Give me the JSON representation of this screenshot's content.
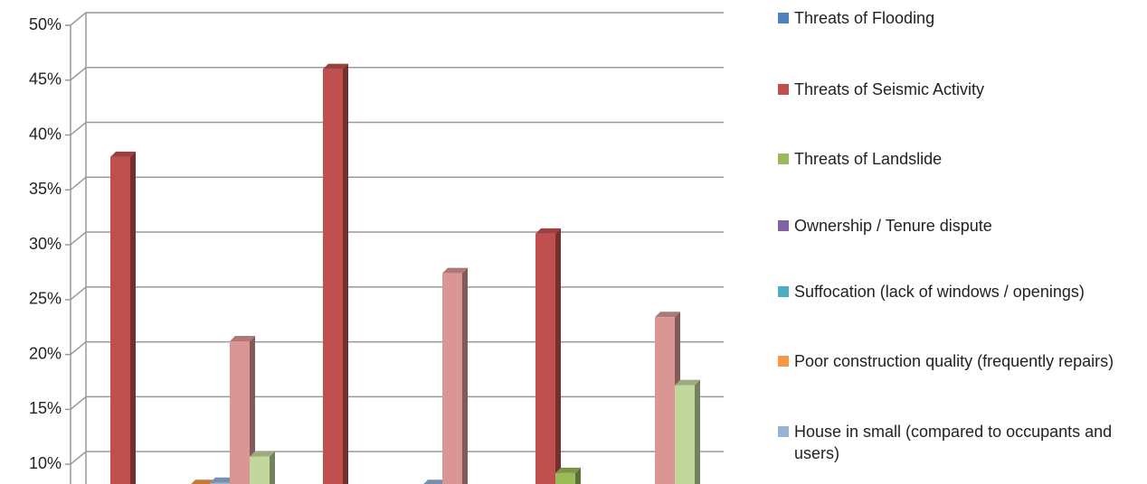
{
  "chart_data": {
    "type": "bar3d",
    "categories": [
      null,
      null,
      null
    ],
    "series": [
      {
        "name": "Threats of Flooding",
        "color": "#4f81bd",
        "values": [
          null,
          null,
          null
        ]
      },
      {
        "name": "Threats of Seismic Activity",
        "color": "#c0504d",
        "values": [
          38,
          46,
          31
        ]
      },
      {
        "name": "Threats of Landslide",
        "color": "#9bbb59",
        "values": [
          null,
          null,
          9.2
        ]
      },
      {
        "name": "Ownership / Tenure dispute",
        "color": "#8064a2",
        "values": [
          null,
          null,
          null
        ]
      },
      {
        "name": "Suffocation (lack of windows / openings)",
        "color": "#4bacc6",
        "values": [
          null,
          null,
          null
        ]
      },
      {
        "name": "Poor construction quality (frequently repairs)",
        "color": "#f79646",
        "values": [
          8.1,
          null,
          null
        ]
      },
      {
        "name": "House in small (compared to occupants and users)",
        "color": "#95b3d7",
        "values": [
          8.3,
          8.1,
          null
        ]
      },
      {
        "color": "#d99694",
        "values": [
          21.2,
          27.4,
          23.4
        ]
      },
      {
        "color": "#c3d69b",
        "values": [
          10.7,
          null,
          17.2
        ]
      }
    ],
    "ylim": [
      8.2,
      50
    ],
    "yticks": [
      {
        "value": 10,
        "label": "10%"
      },
      {
        "value": 15,
        "label": "15%"
      },
      {
        "value": 20,
        "label": "20%"
      },
      {
        "value": 25,
        "label": "25%"
      },
      {
        "value": 30,
        "label": "30%"
      },
      {
        "value": 35,
        "label": "35%"
      },
      {
        "value": 40,
        "label": "40%"
      },
      {
        "value": 45,
        "label": "45%"
      },
      {
        "value": 50,
        "label": "50%"
      }
    ],
    "grid": true,
    "legend": "right"
  }
}
